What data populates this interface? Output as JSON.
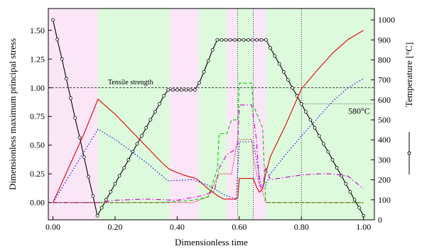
{
  "chart_data": {
    "type": "line",
    "xlabel": "Dimensionless time",
    "ylabel": "Dimensionless maximum principal stress",
    "y2label": "Temperature [°C]",
    "xlim": [
      -0.015,
      1.035
    ],
    "ylim": [
      -0.15,
      1.69
    ],
    "y2lim": [
      0,
      1057
    ],
    "xticks": [
      {
        "value": 0,
        "label": "0.00"
      },
      {
        "value": 0.2,
        "label": "0.20"
      },
      {
        "value": 0.4,
        "label": "0.40"
      },
      {
        "value": 0.6,
        "label": "0.60"
      },
      {
        "value": 0.8,
        "label": "0.80"
      },
      {
        "value": 1,
        "label": "1.00"
      }
    ],
    "yticks": [
      {
        "value": 0,
        "label": "0.00"
      },
      {
        "value": 0.25,
        "label": "0.25"
      },
      {
        "value": 0.5,
        "label": "0.50"
      },
      {
        "value": 0.75,
        "label": "0.75"
      },
      {
        "value": 1,
        "label": "1.00"
      },
      {
        "value": 1.25,
        "label": "1.25"
      },
      {
        "value": 1.5,
        "label": "1.50"
      }
    ],
    "y2ticks": [
      0,
      100,
      200,
      300,
      400,
      500,
      600,
      700,
      800,
      900,
      1000
    ],
    "regions": [
      {
        "start": -0.015,
        "end": 0.145,
        "color": "#fbe6f8"
      },
      {
        "start": 0.145,
        "end": 0.375,
        "color": "#ddfadd"
      },
      {
        "start": 0.375,
        "end": 0.47,
        "color": "#fbe6f8"
      },
      {
        "start": 0.47,
        "end": 0.56,
        "color": "#ddfadd"
      },
      {
        "start": 0.56,
        "end": 0.595,
        "color": "#fbe6f8"
      },
      {
        "start": 0.595,
        "end": 0.645,
        "color": "#ddfadd"
      },
      {
        "start": 0.645,
        "end": 0.685,
        "color": "#fbe6f8"
      },
      {
        "start": 0.685,
        "end": 1.035,
        "color": "#ddfadd"
      }
    ],
    "hline": {
      "value": 1,
      "label": "Tensile strength"
    },
    "vlines": [
      0.595,
      0.645,
      0.8
    ],
    "h2line": {
      "value": 580,
      "from": 0.8,
      "label": "580°C"
    },
    "series": [
      {
        "color": "#000000",
        "style": "solid",
        "markers": true,
        "axis": "y2",
        "x": [
          0,
          0.014,
          0.029,
          0.043,
          0.057,
          0.071,
          0.086,
          0.1,
          0.114,
          0.129,
          0.143,
          0.157,
          0.171,
          0.186,
          0.2,
          0.214,
          0.229,
          0.243,
          0.257,
          0.271,
          0.286,
          0.3,
          0.314,
          0.329,
          0.343,
          0.357,
          0.371,
          0.386,
          0.4,
          0.414,
          0.429,
          0.443,
          0.457,
          0.471,
          0.486,
          0.5,
          0.514,
          0.529,
          0.543,
          0.557,
          0.571,
          0.586,
          0.6,
          0.614,
          0.629,
          0.643,
          0.657,
          0.671,
          0.686,
          0.7,
          0.714,
          0.729,
          0.743,
          0.757,
          0.771,
          0.786,
          0.8,
          0.814,
          0.829,
          0.843,
          0.857,
          0.871,
          0.886,
          0.9,
          0.914,
          0.929,
          0.943,
          0.957,
          0.971,
          0.986,
          1.0
        ],
        "values": [
          1000,
          902,
          804,
          706,
          608,
          510,
          412,
          314,
          216,
          118,
          20,
          60,
          100,
          140,
          180,
          220,
          260,
          300,
          340,
          380,
          420,
          460,
          500,
          540,
          580,
          620,
          650,
          650,
          650,
          650,
          650,
          650,
          650,
          685,
          740,
          795,
          850,
          900,
          900,
          900,
          900,
          900,
          900,
          900,
          900,
          900,
          900,
          900,
          900,
          860,
          820,
          780,
          740,
          700,
          660,
          620,
          580,
          540,
          500,
          460,
          420,
          380,
          340,
          300,
          260,
          220,
          180,
          140,
          100,
          60,
          20
        ]
      },
      {
        "color": "#e00000",
        "style": "solid",
        "x": [
          0,
          0.05,
          0.1,
          0.145,
          0.2,
          0.25,
          0.3,
          0.35,
          0.375,
          0.42,
          0.46,
          0.47,
          0.5,
          0.53,
          0.55,
          0.59,
          0.595,
          0.6,
          0.645,
          0.655,
          0.665,
          0.675,
          0.685,
          0.7,
          0.75,
          0.8,
          0.85,
          0.9,
          0.95,
          1.0
        ],
        "values": [
          0,
          0.3,
          0.6,
          0.9,
          0.77,
          0.63,
          0.49,
          0.35,
          0.29,
          0.24,
          0.21,
          0.19,
          0.12,
          0.06,
          0.03,
          0.03,
          0.04,
          0.21,
          0.21,
          0.14,
          0.09,
          0.12,
          0.25,
          0.4,
          0.68,
          0.99,
          1.15,
          1.3,
          1.42,
          1.5
        ]
      },
      {
        "color": "#0000e0",
        "style": "dotted",
        "x": [
          0,
          0.145,
          0.2,
          0.3,
          0.37,
          0.45,
          0.5,
          0.55,
          0.59,
          0.6,
          0.645,
          0.67,
          0.685,
          0.7,
          0.75,
          0.8,
          0.85,
          0.9,
          0.95,
          1.0
        ],
        "values": [
          0,
          0.64,
          0.55,
          0.35,
          0.19,
          0.2,
          0.15,
          0.07,
          0.03,
          0.53,
          0.53,
          0.15,
          0.15,
          0.25,
          0.42,
          0.58,
          0.73,
          0.88,
          1.0,
          1.08
        ]
      },
      {
        "color": "#00cc00",
        "style": "dashed",
        "x": [
          0,
          0.35,
          0.45,
          0.5,
          0.53,
          0.535,
          0.56,
          0.575,
          0.595,
          0.6,
          0.64,
          0.645,
          0.66,
          0.675,
          0.685,
          1.0
        ],
        "values": [
          0,
          0,
          0.02,
          0.05,
          0.3,
          0.6,
          0.6,
          0.72,
          0.72,
          1.04,
          1.04,
          0.85,
          0.75,
          0.65,
          0,
          0
        ]
      },
      {
        "color": "#cc00cc",
        "style": "dashdot",
        "x": [
          0,
          0.15,
          0.2,
          0.3,
          0.4,
          0.48,
          0.52,
          0.535,
          0.56,
          0.58,
          0.595,
          0.6,
          0.64,
          0.655,
          0.665,
          0.675,
          0.685,
          0.7,
          0.75,
          0.8,
          0.85,
          0.9,
          0.95,
          1.0
        ],
        "values": [
          0,
          0,
          0.02,
          0.03,
          0.02,
          0.06,
          0.1,
          0.3,
          0.42,
          0.45,
          0.5,
          0.85,
          0.85,
          0.55,
          0.15,
          0.13,
          0.3,
          0.2,
          0.22,
          0.24,
          0.25,
          0.25,
          0.23,
          0.12
        ]
      },
      {
        "color": "#cc0000",
        "style": "finedot",
        "x": [
          0,
          0.45,
          0.5,
          0.535,
          0.575,
          0.585,
          0.595,
          0.64,
          0.645,
          0.66,
          0.68,
          0.685,
          1.0
        ],
        "values": [
          0,
          0,
          0.05,
          0.25,
          0.25,
          0.4,
          0.55,
          0.55,
          0.4,
          0.2,
          0.05,
          0,
          0
        ]
      }
    ]
  }
}
